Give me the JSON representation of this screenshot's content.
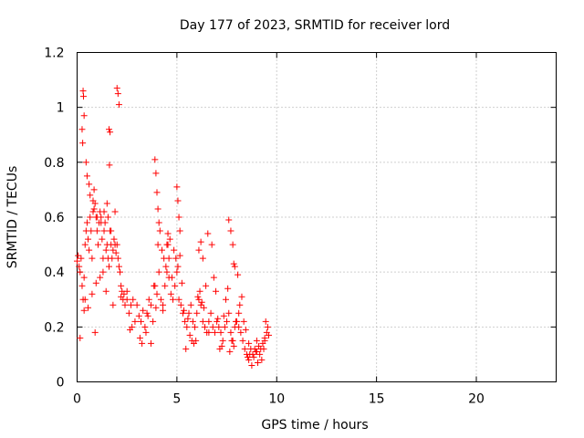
{
  "chart_data": {
    "type": "scatter",
    "title": "Day 177 of 2023, SRMTID for receiver lord",
    "xlabel": "GPS time / hours",
    "ylabel": "SRMTID / TECUs",
    "xlim": [
      0,
      24
    ],
    "ylim": [
      0,
      1.2
    ],
    "xticks": [
      0,
      5,
      10,
      15,
      20
    ],
    "xtick_labels": [
      "0",
      "5",
      "10",
      "15",
      "20"
    ],
    "yticks": [
      0,
      0.2,
      0.4,
      0.6,
      0.8,
      1.0,
      1.2
    ],
    "ytick_labels": [
      "0",
      "0.2",
      "0.4",
      "0.6",
      "0.8",
      "1",
      "1.2"
    ],
    "grid": true,
    "marker": "+",
    "series": [
      {
        "name": "SRMTID",
        "color": "#ff0000",
        "x": [
          0.0,
          0.05,
          0.1,
          0.15,
          0.2,
          0.25,
          0.3,
          0.35,
          0.4,
          0.45,
          0.5,
          0.55,
          0.6,
          0.65,
          0.7,
          0.75,
          0.8,
          0.85,
          0.9,
          0.95,
          1.0,
          1.05,
          1.1,
          1.15,
          1.2,
          1.25,
          1.3,
          1.35,
          1.4,
          1.45,
          1.5,
          1.55,
          1.6,
          1.65,
          1.7,
          1.75,
          1.8,
          1.85,
          1.9,
          1.95,
          2.0,
          2.05,
          2.1,
          2.15,
          2.2,
          2.25,
          2.3,
          2.4,
          2.5,
          2.6,
          2.7,
          2.8,
          2.9,
          3.0,
          3.1,
          3.2,
          3.3,
          3.4,
          3.5,
          3.6,
          3.7,
          3.8,
          3.9,
          4.0,
          4.1,
          4.2,
          4.3,
          4.4,
          4.5,
          4.6,
          4.7,
          4.8,
          4.9,
          5.0,
          5.1,
          5.2,
          5.3,
          5.4,
          5.5,
          5.6,
          5.7,
          5.8,
          5.9,
          6.0,
          6.1,
          6.2,
          6.3,
          6.4,
          6.5,
          6.6,
          6.7,
          6.8,
          6.9,
          7.0,
          7.1,
          7.2,
          7.3,
          7.4,
          7.5,
          7.6,
          7.7,
          7.8,
          7.9,
          8.0,
          8.1,
          8.2,
          8.3,
          8.4,
          8.5,
          8.6,
          8.7,
          8.8,
          8.9,
          9.0,
          9.1,
          9.2,
          9.3,
          9.4,
          9.5,
          9.6,
          0.3,
          0.32,
          0.35,
          0.25,
          0.28,
          0.45,
          0.5,
          0.6,
          0.65,
          0.8,
          0.85,
          1.0,
          1.2,
          1.35,
          1.5,
          1.55,
          1.7,
          2.0,
          2.05,
          2.1,
          1.6,
          1.65,
          1.62,
          0.15,
          0.35,
          0.55,
          0.75,
          0.95,
          1.15,
          1.45,
          1.8,
          2.2,
          2.5,
          2.65,
          3.15,
          3.45,
          3.7,
          3.95,
          4.05,
          4.15,
          4.25,
          4.35,
          4.45,
          4.55,
          4.75,
          4.85,
          5.05,
          5.15,
          5.25,
          5.35,
          5.55,
          5.65,
          5.75,
          5.85,
          6.05,
          6.15,
          6.25,
          6.35,
          6.45,
          6.55,
          6.75,
          6.85,
          6.95,
          7.05,
          7.15,
          7.25,
          7.45,
          7.55,
          7.65,
          7.75,
          7.85,
          7.95,
          8.05,
          8.15,
          8.25,
          8.35,
          8.45,
          8.55,
          8.65,
          8.75,
          8.85,
          8.95,
          9.05,
          9.15,
          9.25,
          9.35,
          9.45,
          9.55,
          3.9,
          3.95,
          4.0,
          4.05,
          4.1,
          4.5,
          4.55,
          4.6,
          4.65,
          5.0,
          5.05,
          5.1,
          5.15,
          6.1,
          6.2,
          6.3,
          7.6,
          7.7,
          7.8,
          7.85,
          7.9,
          0.4,
          0.9,
          1.3,
          1.9,
          2.35,
          2.75,
          3.25,
          3.55,
          3.85,
          4.3,
          4.95,
          5.45,
          5.95,
          6.6,
          7.35,
          8.1,
          8.6,
          9.0,
          9.4
        ],
        "y": [
          0.44,
          0.46,
          0.42,
          0.4,
          0.45,
          0.35,
          0.3,
          0.38,
          0.5,
          0.55,
          0.58,
          0.52,
          0.48,
          0.6,
          0.55,
          0.45,
          0.62,
          0.7,
          0.65,
          0.6,
          0.55,
          0.5,
          0.58,
          0.62,
          0.6,
          0.52,
          0.45,
          0.55,
          0.58,
          0.48,
          0.5,
          0.45,
          0.42,
          0.55,
          0.5,
          0.45,
          0.48,
          0.52,
          0.5,
          0.47,
          0.5,
          0.45,
          0.42,
          0.4,
          0.35,
          0.33,
          0.3,
          0.28,
          0.3,
          0.25,
          0.28,
          0.3,
          0.22,
          0.28,
          0.24,
          0.22,
          0.26,
          0.2,
          0.25,
          0.3,
          0.28,
          0.22,
          0.35,
          0.32,
          0.4,
          0.3,
          0.28,
          0.35,
          0.4,
          0.38,
          0.32,
          0.3,
          0.35,
          0.4,
          0.3,
          0.28,
          0.25,
          0.22,
          0.2,
          0.25,
          0.28,
          0.22,
          0.2,
          0.25,
          0.3,
          0.28,
          0.22,
          0.2,
          0.18,
          0.22,
          0.25,
          0.2,
          0.18,
          0.22,
          0.2,
          0.18,
          0.15,
          0.2,
          0.22,
          0.25,
          0.18,
          0.15,
          0.2,
          0.22,
          0.25,
          0.18,
          0.15,
          0.12,
          0.1,
          0.14,
          0.12,
          0.1,
          0.12,
          0.15,
          0.13,
          0.12,
          0.14,
          0.16,
          0.18,
          0.17,
          1.06,
          1.04,
          0.97,
          0.92,
          0.87,
          0.8,
          0.75,
          0.72,
          0.68,
          0.66,
          0.63,
          0.6,
          0.58,
          0.62,
          0.65,
          0.6,
          0.55,
          1.07,
          1.05,
          1.01,
          0.92,
          0.91,
          0.79,
          0.16,
          0.26,
          0.27,
          0.32,
          0.36,
          0.38,
          0.33,
          0.28,
          0.31,
          0.33,
          0.19,
          0.16,
          0.18,
          0.14,
          0.27,
          0.5,
          0.55,
          0.48,
          0.45,
          0.42,
          0.5,
          0.38,
          0.48,
          0.42,
          0.46,
          0.36,
          0.26,
          0.23,
          0.17,
          0.15,
          0.14,
          0.31,
          0.33,
          0.29,
          0.27,
          0.35,
          0.54,
          0.5,
          0.38,
          0.33,
          0.23,
          0.12,
          0.13,
          0.3,
          0.34,
          0.11,
          0.15,
          0.13,
          0.22,
          0.39,
          0.28,
          0.31,
          0.22,
          0.19,
          0.09,
          0.1,
          0.06,
          0.09,
          0.11,
          0.07,
          0.1,
          0.08,
          0.12,
          0.22,
          0.2,
          0.81,
          0.76,
          0.69,
          0.63,
          0.58,
          0.5,
          0.54,
          0.45,
          0.52,
          0.71,
          0.66,
          0.6,
          0.55,
          0.48,
          0.51,
          0.45,
          0.59,
          0.55,
          0.5,
          0.43,
          0.42,
          0.3,
          0.18,
          0.4,
          0.62,
          0.32,
          0.2,
          0.14,
          0.24,
          0.35,
          0.26,
          0.45,
          0.12,
          0.15,
          0.18,
          0.24,
          0.2,
          0.08,
          0.11,
          0.15
        ]
      }
    ]
  }
}
